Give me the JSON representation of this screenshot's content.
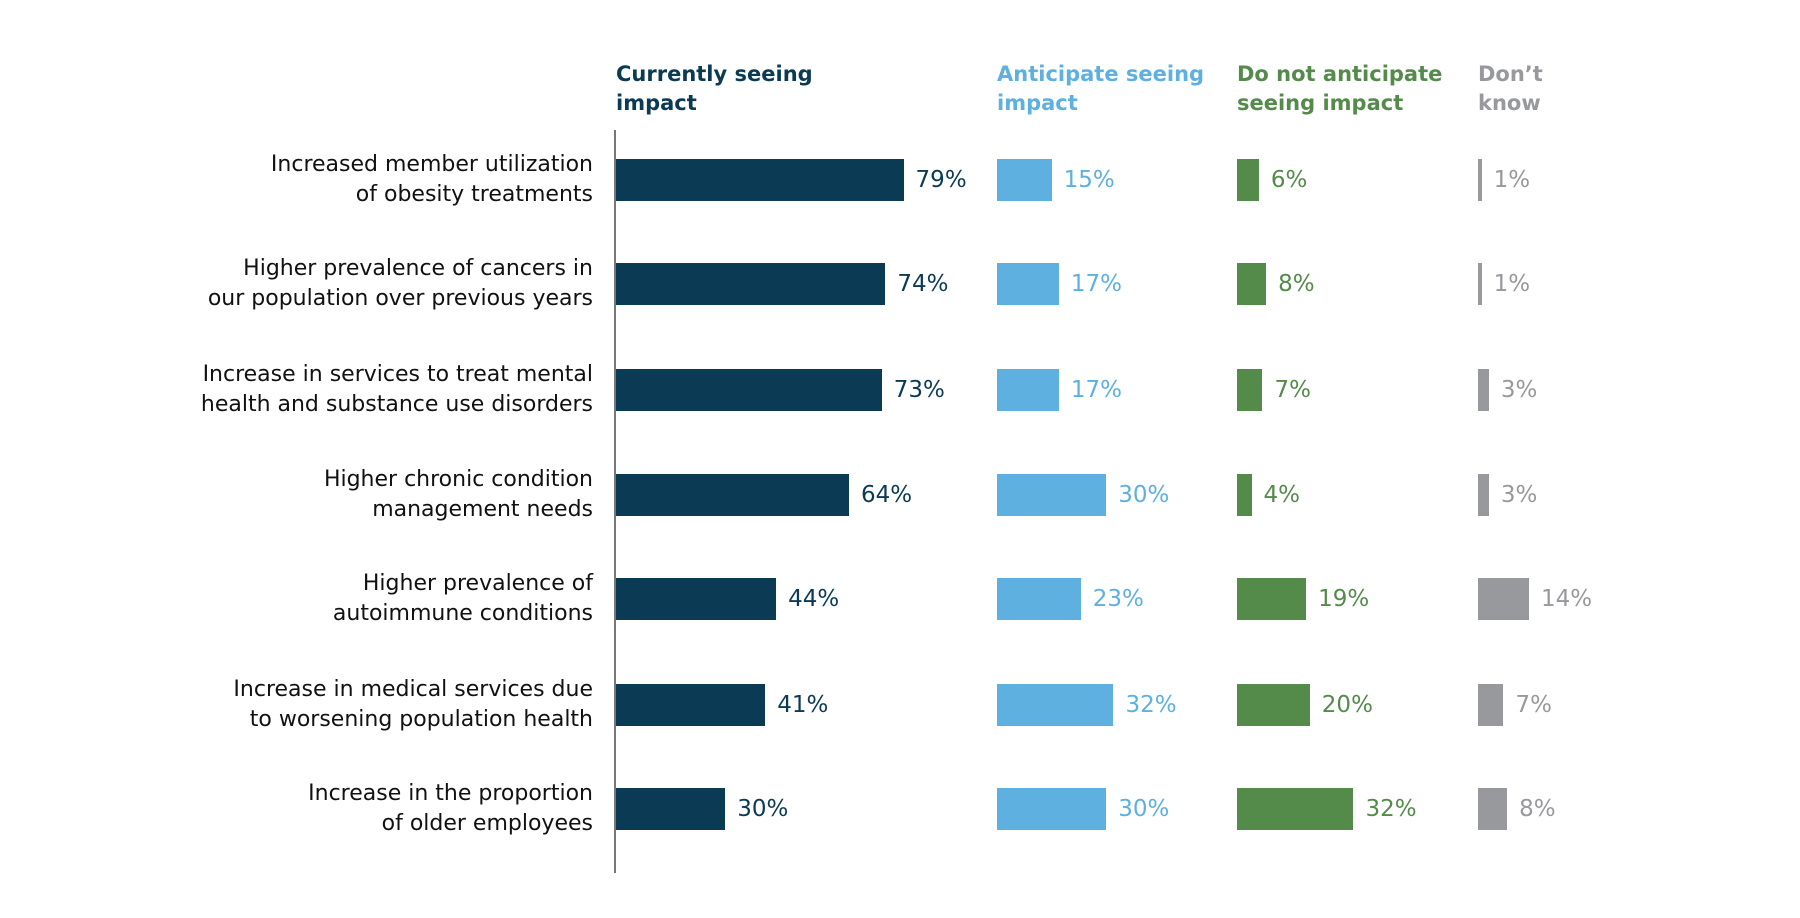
{
  "chart_data": {
    "type": "bar",
    "categories": [
      "Increased member utilization of obesity treatments",
      "Higher prevalence of cancers in our population over previous years",
      "Increase in services to treat mental health and substance use disorders",
      "Higher chronic condition management needs",
      "Higher prevalence of autoimmune conditions",
      "Increase in medical services due to worsening population health",
      "Increase in the proportion of older employees"
    ],
    "series": [
      {
        "name": "Currently seeing impact",
        "color": "#0b3a55",
        "values": [
          79,
          74,
          73,
          64,
          44,
          41,
          30
        ],
        "value_labels": [
          "79%",
          "74%",
          "73%",
          "64%",
          "44%",
          "41%",
          "30%"
        ]
      },
      {
        "name": "Anticipate seeing impact",
        "color": "#5eb0e0",
        "values": [
          15,
          17,
          17,
          30,
          23,
          32,
          30
        ],
        "value_labels": [
          "15%",
          "17%",
          "17%",
          "30%",
          "23%",
          "32%",
          "30%"
        ]
      },
      {
        "name": "Do not anticipate seeing impact",
        "color": "#548b4b",
        "values": [
          6,
          8,
          7,
          4,
          19,
          20,
          32
        ],
        "value_labels": [
          "6%",
          "8%",
          "7%",
          "4%",
          "19%",
          "20%",
          "32%"
        ]
      },
      {
        "name": "Don’t know",
        "color": "#97999c",
        "values": [
          1,
          1,
          3,
          3,
          14,
          7,
          8
        ],
        "value_labels": [
          "1%",
          "1%",
          "3%",
          "3%",
          "14%",
          "7%",
          "8%"
        ]
      }
    ]
  }
}
